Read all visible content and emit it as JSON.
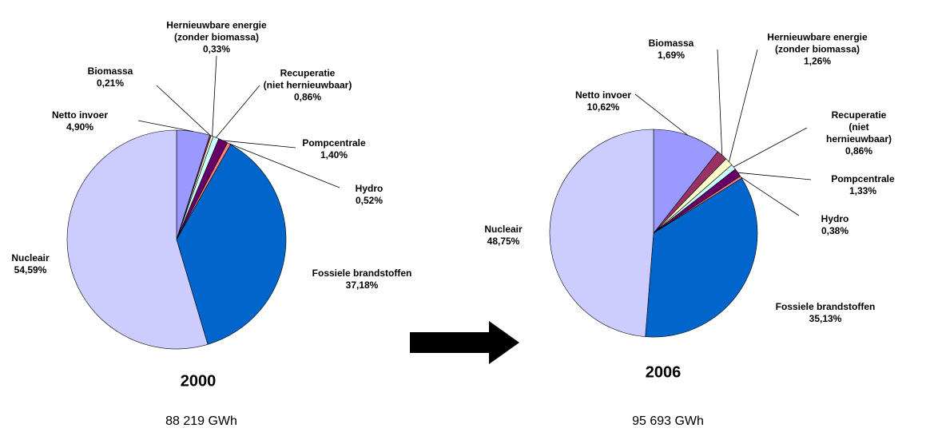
{
  "chart_data": [
    {
      "type": "pie",
      "title": "2000",
      "subtitle": "88 219 GWh",
      "categories": [
        "Netto invoer",
        "Biomassa",
        "Hernieuwbare energie\n(zonder biomassa)",
        "Recuperatie\n(niet hernieuwbaar)",
        "Pompcentrale",
        "Hydro",
        "Fossiele brandstoffen",
        "Nucleair"
      ],
      "values": [
        4.9,
        0.21,
        0.33,
        0.86,
        1.4,
        0.52,
        37.18,
        54.59
      ],
      "value_labels": [
        "4,90%",
        "0,21%",
        "0,33%",
        "0,86%",
        "1,40%",
        "0,52%",
        "37,18%",
        "54,59%"
      ],
      "colors": [
        "#9999ff",
        "#993366",
        "#ffffcc",
        "#ccffff",
        "#660066",
        "#ff8080",
        "#0066cc",
        "#ccccff"
      ]
    },
    {
      "type": "pie",
      "title": "2006",
      "subtitle": "95 693 GWh",
      "categories": [
        "Netto invoer",
        "Biomassa",
        "Hernieuwbare energie\n(zonder biomassa)",
        "Recuperatie\n(niet hernieuwbaar)",
        "Pompcentrale",
        "Hydro",
        "Fossiele brandstoffen",
        "Nucleair"
      ],
      "values": [
        10.62,
        1.69,
        1.26,
        0.86,
        1.33,
        0.38,
        35.13,
        48.75
      ],
      "value_labels": [
        "10,62%",
        "1,69%",
        "1,26%",
        "0,86%",
        "1,33%",
        "0,38%",
        "35,13%",
        "48,75%"
      ],
      "colors": [
        "#9999ff",
        "#993366",
        "#ffffcc",
        "#ccffff",
        "#660066",
        "#ff8080",
        "#0066cc",
        "#ccccff"
      ]
    }
  ]
}
